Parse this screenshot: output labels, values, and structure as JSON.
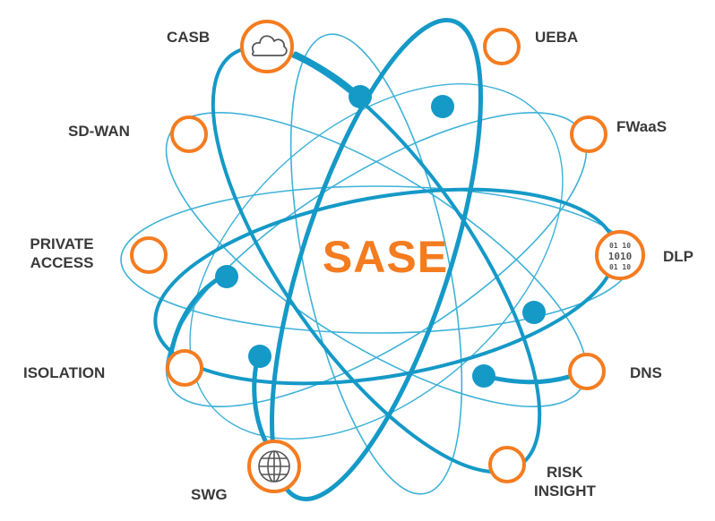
{
  "title": "SASE",
  "colors": {
    "accent": "#f47c20",
    "orbit": "#1599c7",
    "orbit_thin": "#3eb2d8",
    "text": "#3a3a3a",
    "icon": "#555555"
  },
  "nodes": [
    {
      "id": "casb",
      "label": "CASB",
      "icon": "cloud-icon"
    },
    {
      "id": "ueba",
      "label": "UEBA"
    },
    {
      "id": "sdwan",
      "label": "SD-WAN"
    },
    {
      "id": "fwaas",
      "label": "FWaaS"
    },
    {
      "id": "private-access",
      "label_line1": "PRIVATE",
      "label_line2": "ACCESS"
    },
    {
      "id": "dlp",
      "label": "DLP",
      "icon": "binary-data-icon",
      "icon_text_top": "01 10",
      "icon_text_mid": "1010",
      "icon_text_bot": "01 10"
    },
    {
      "id": "isolation",
      "label": "ISOLATION"
    },
    {
      "id": "dns",
      "label": "DNS"
    },
    {
      "id": "swg",
      "label": "SWG",
      "icon": "globe-icon"
    },
    {
      "id": "risk-insight",
      "label_line1": "RISK",
      "label_line2": "INSIGHT"
    }
  ]
}
